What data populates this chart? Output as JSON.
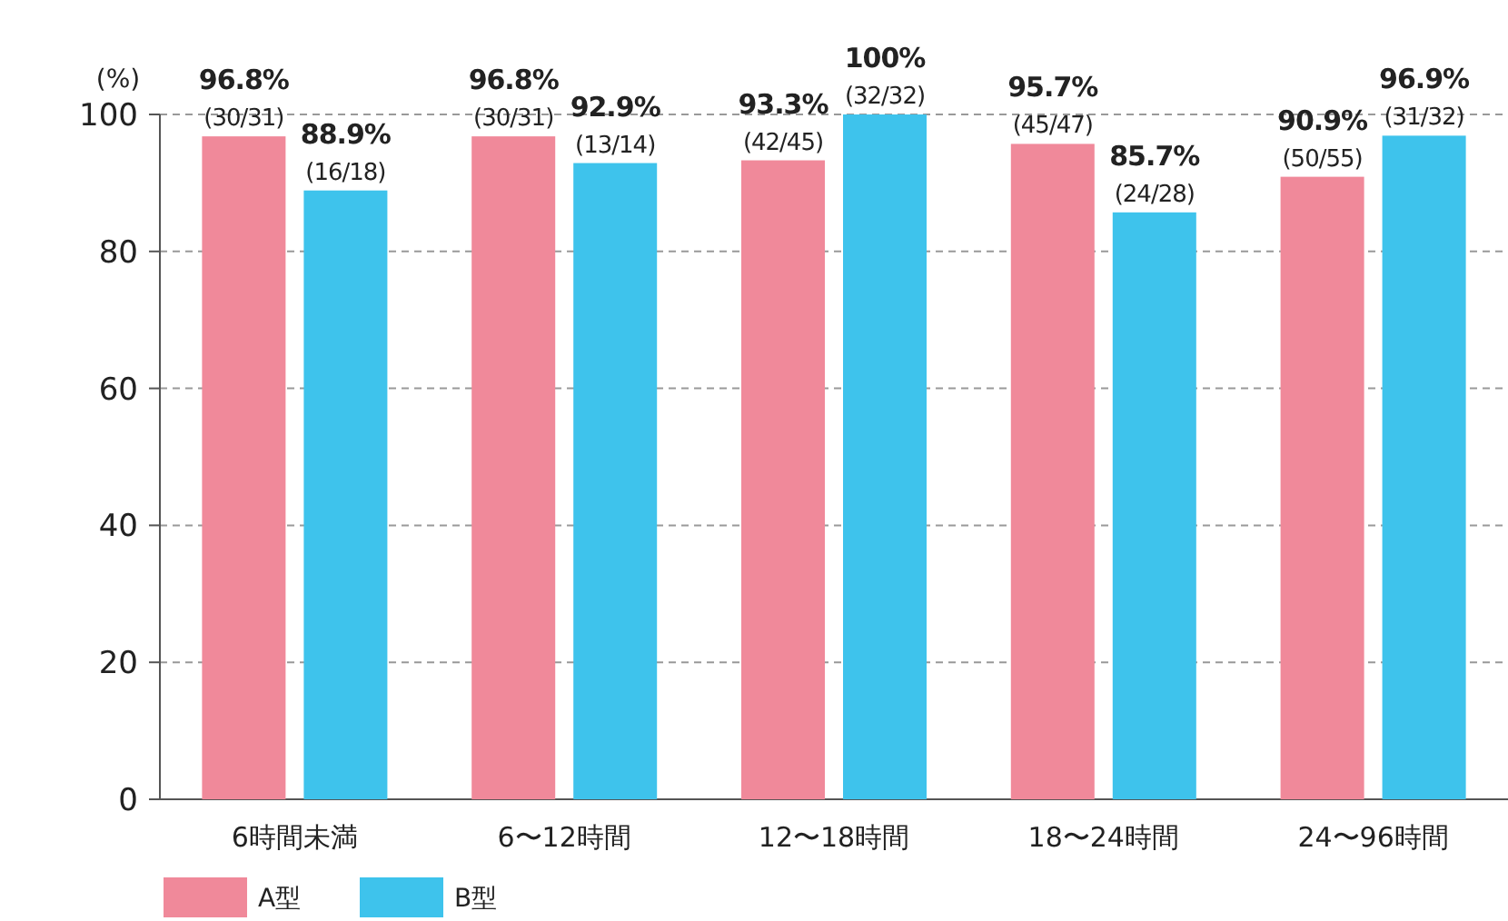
{
  "chart_data": {
    "type": "bar",
    "ylabel": "(%)",
    "categories": [
      "6時間未満",
      "6〜12時間",
      "12〜18時間",
      "18〜24時間",
      "24〜96時間"
    ],
    "series": [
      {
        "name": "A型",
        "color": "#f0899a",
        "values": [
          96.8,
          96.8,
          93.3,
          95.7,
          90.9
        ],
        "value_labels": [
          "96.8%\n(30/31)",
          "96.8%\n(30/31)",
          "93.3%\n(42/45)",
          "95.7%\n(45/47)",
          "90.9%\n(50/55)"
        ]
      },
      {
        "name": "B型",
        "color": "#3ec3ec",
        "values": [
          88.9,
          92.9,
          100,
          85.7,
          96.9
        ],
        "value_labels": [
          "88.9%\n(16/18)",
          "92.9%\n(13/14)",
          "100%\n(32/32)",
          "85.7%\n(24/28)",
          "96.9%\n(31/32)"
        ]
      }
    ],
    "ylim": [
      0,
      100
    ],
    "yticks": [
      0,
      20,
      40,
      60,
      80,
      100
    ],
    "grid": "y",
    "legend": "bottom left"
  }
}
